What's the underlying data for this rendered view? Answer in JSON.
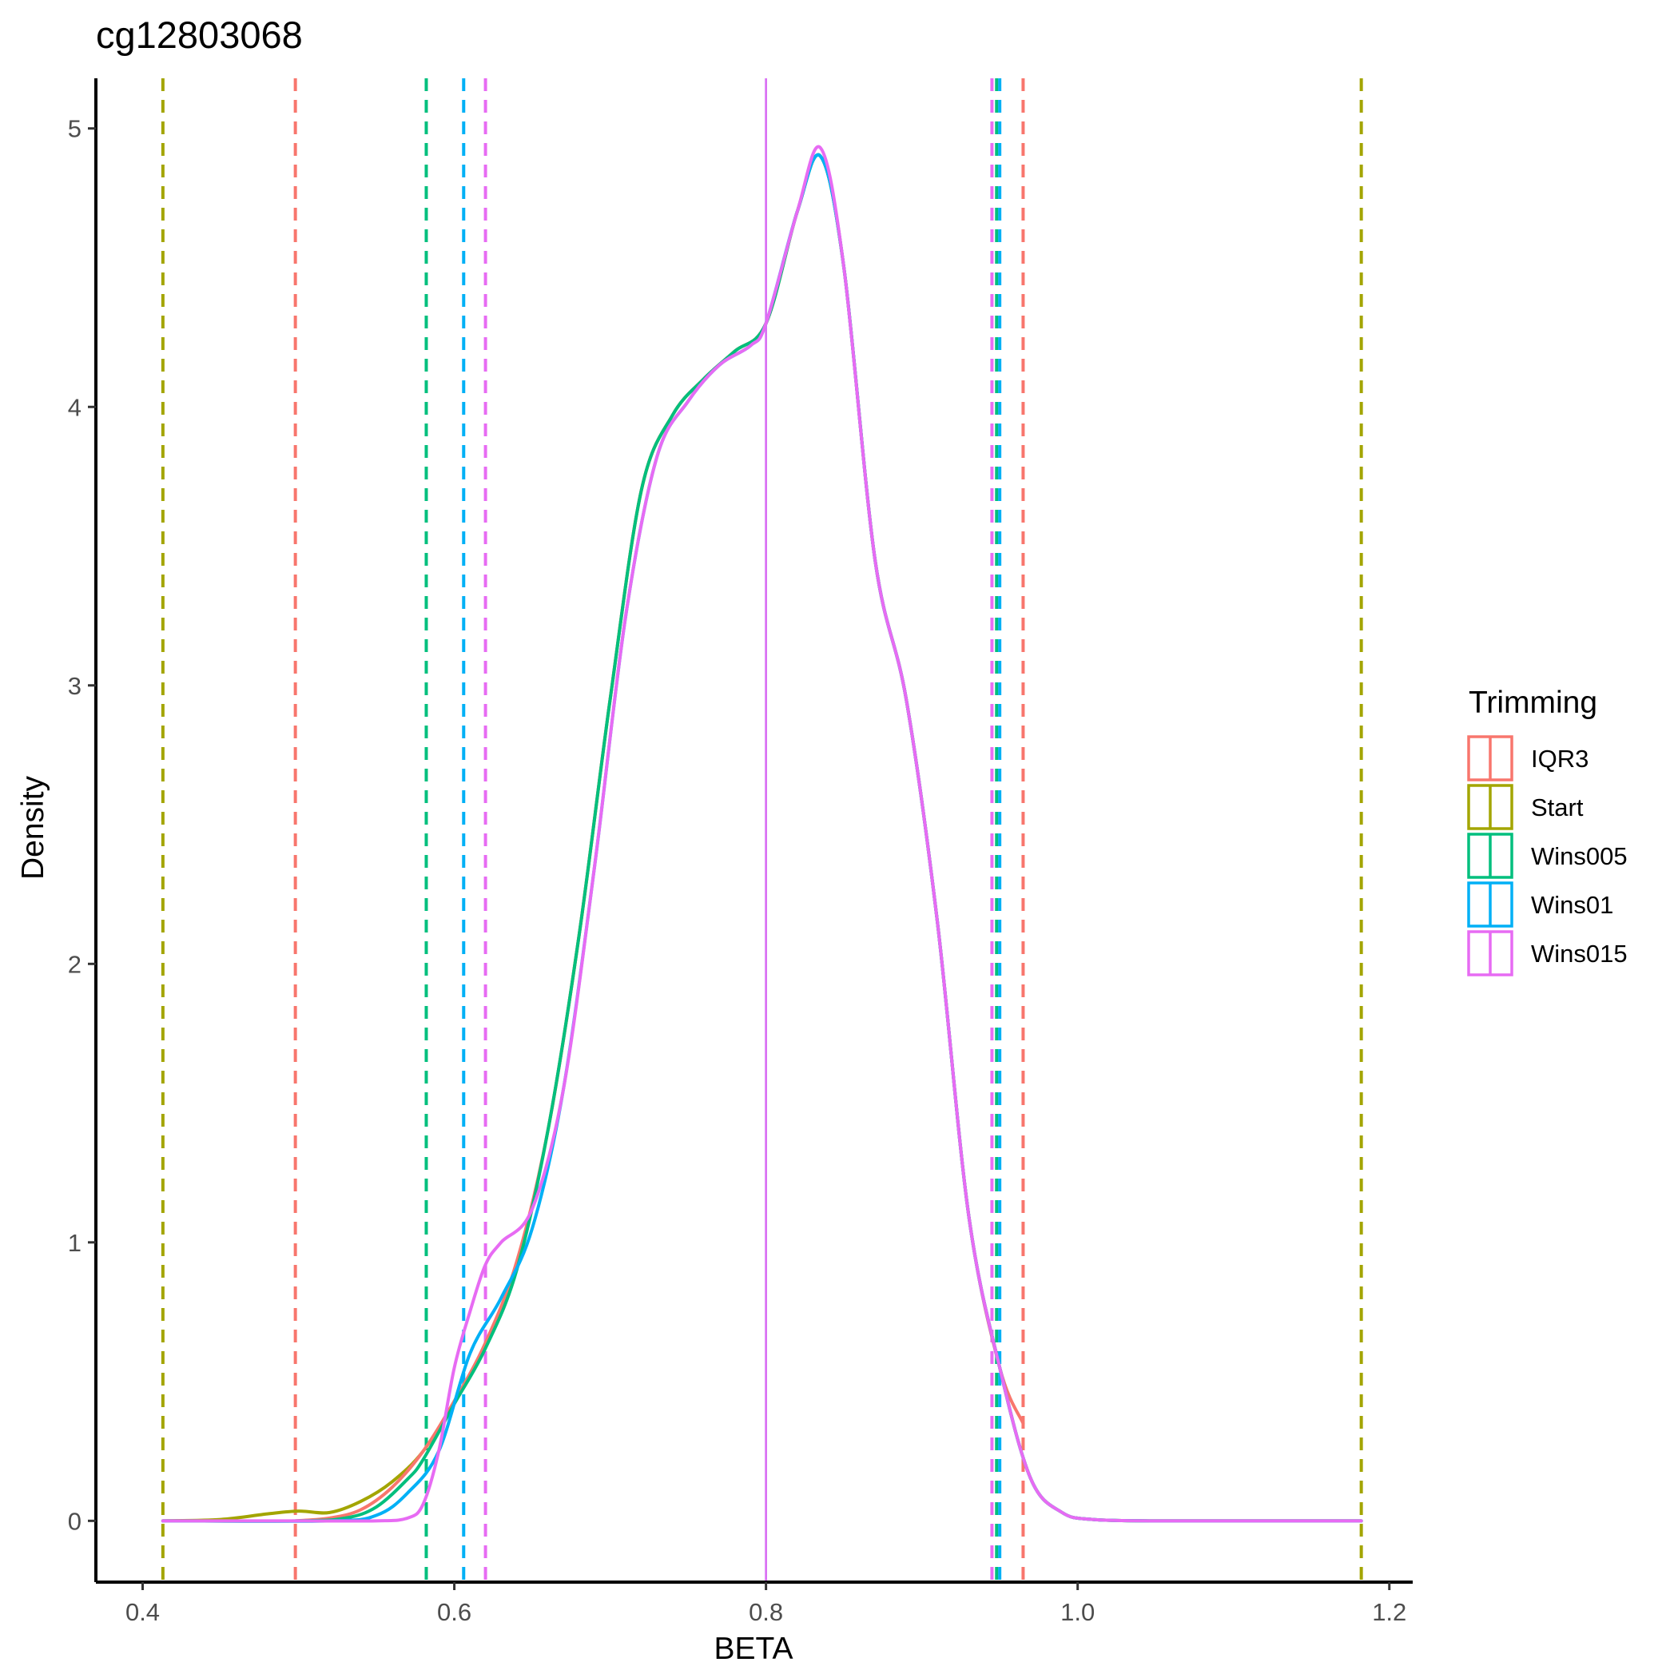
{
  "chart_data": {
    "type": "line",
    "title": "cg12803068",
    "xlabel": "BETA",
    "ylabel": "Density",
    "xlim": [
      0.37,
      1.215
    ],
    "ylim": [
      -0.22,
      5.18
    ],
    "x_ticks": [
      0.4,
      0.6,
      0.8,
      1.0,
      1.2
    ],
    "x_tick_labels": [
      "0.4",
      "0.6",
      "0.8",
      "1.0",
      "1.2"
    ],
    "y_ticks": [
      0,
      1,
      2,
      3,
      4,
      5
    ],
    "y_tick_labels": [
      "0",
      "1",
      "2",
      "3",
      "4",
      "5"
    ],
    "grid": false,
    "legend": {
      "title": "Trimming",
      "placement": "right",
      "entries": [
        "IQR3",
        "Start",
        "Wins005",
        "Wins01",
        "Wins015"
      ]
    },
    "colors": {
      "IQR3": "#F8766D",
      "Start": "#A3A500",
      "Wins005": "#00BF7D",
      "Wins01": "#00B0F6",
      "Wins015": "#E76BF3"
    },
    "series": [
      {
        "name": "Start",
        "color": "#A3A500",
        "x": [
          0.413,
          0.45,
          0.48,
          0.5,
          0.52,
          0.54,
          0.56,
          0.58,
          0.6,
          0.62,
          0.64,
          0.66,
          0.68,
          0.7,
          0.72,
          0.74,
          0.76,
          0.78,
          0.8,
          0.82,
          0.835,
          0.85,
          0.87,
          0.89,
          0.91,
          0.93,
          0.95,
          0.97,
          0.99,
          1.01,
          1.05,
          1.1,
          1.15,
          1.182
        ],
        "y": [
          0.0,
          0.005,
          0.025,
          0.035,
          0.03,
          0.07,
          0.14,
          0.25,
          0.43,
          0.63,
          0.92,
          1.4,
          2.1,
          2.95,
          3.7,
          3.97,
          4.1,
          4.2,
          4.3,
          4.7,
          4.9,
          4.5,
          3.45,
          2.95,
          2.15,
          1.1,
          0.55,
          0.15,
          0.03,
          0.005,
          0.0,
          0.0,
          0.0,
          0.0
        ]
      },
      {
        "name": "IQR3",
        "color": "#F8766D",
        "x": [
          0.498,
          0.52,
          0.54,
          0.56,
          0.58,
          0.6,
          0.62,
          0.64,
          0.66,
          0.68,
          0.7,
          0.72,
          0.74,
          0.76,
          0.78,
          0.8,
          0.82,
          0.835,
          0.85,
          0.87,
          0.89,
          0.91,
          0.93,
          0.95,
          0.965
        ],
        "y": [
          0.0,
          0.01,
          0.04,
          0.12,
          0.25,
          0.43,
          0.64,
          0.93,
          1.4,
          2.1,
          2.95,
          3.7,
          3.97,
          4.1,
          4.2,
          4.3,
          4.7,
          4.9,
          4.5,
          3.45,
          2.95,
          2.15,
          1.1,
          0.55,
          0.35
        ]
      },
      {
        "name": "Wins005",
        "color": "#00BF7D",
        "x": [
          0.413,
          0.5,
          0.53,
          0.55,
          0.57,
          0.58,
          0.6,
          0.62,
          0.64,
          0.66,
          0.68,
          0.7,
          0.72,
          0.74,
          0.76,
          0.78,
          0.8,
          0.82,
          0.835,
          0.85,
          0.87,
          0.89,
          0.91,
          0.93,
          0.95,
          0.97,
          0.99,
          1.01,
          1.05,
          1.1,
          1.15,
          1.182
        ],
        "y": [
          0.0,
          0.0,
          0.01,
          0.05,
          0.15,
          0.22,
          0.42,
          0.62,
          0.9,
          1.4,
          2.1,
          2.95,
          3.7,
          3.97,
          4.1,
          4.2,
          4.3,
          4.7,
          4.9,
          4.5,
          3.45,
          2.95,
          2.15,
          1.1,
          0.55,
          0.15,
          0.03,
          0.005,
          0.0,
          0.0,
          0.0,
          0.0
        ]
      },
      {
        "name": "Wins01",
        "color": "#00B0F6",
        "x": [
          0.413,
          0.52,
          0.55,
          0.57,
          0.59,
          0.61,
          0.63,
          0.65,
          0.67,
          0.69,
          0.71,
          0.73,
          0.75,
          0.77,
          0.79,
          0.8,
          0.82,
          0.835,
          0.85,
          0.87,
          0.89,
          0.91,
          0.93,
          0.95,
          0.97,
          0.99,
          1.01,
          1.05,
          1.1,
          1.15,
          1.182
        ],
        "y": [
          0.0,
          0.0,
          0.02,
          0.1,
          0.25,
          0.6,
          0.8,
          1.05,
          1.55,
          2.35,
          3.25,
          3.82,
          4.02,
          4.15,
          4.22,
          4.3,
          4.7,
          4.9,
          4.5,
          3.45,
          2.95,
          2.15,
          1.1,
          0.55,
          0.15,
          0.03,
          0.005,
          0.0,
          0.0,
          0.0,
          0.0
        ]
      },
      {
        "name": "Wins015",
        "color": "#E76BF3",
        "x": [
          0.413,
          0.5,
          0.55,
          0.57,
          0.58,
          0.59,
          0.6,
          0.61,
          0.62,
          0.63,
          0.65,
          0.67,
          0.69,
          0.71,
          0.73,
          0.75,
          0.77,
          0.79,
          0.8,
          0.82,
          0.835,
          0.85,
          0.87,
          0.89,
          0.91,
          0.93,
          0.95,
          0.97,
          0.99,
          1.01,
          1.05,
          1.1,
          1.15,
          1.182
        ],
        "y": [
          0.0,
          0.0,
          0.0,
          0.01,
          0.06,
          0.25,
          0.55,
          0.75,
          0.92,
          1.0,
          1.12,
          1.55,
          2.35,
          3.25,
          3.82,
          4.02,
          4.15,
          4.22,
          4.3,
          4.7,
          4.93,
          4.5,
          3.45,
          2.95,
          2.15,
          1.1,
          0.55,
          0.15,
          0.03,
          0.005,
          0.0,
          0.0,
          0.0,
          0.0
        ]
      }
    ],
    "vlines": [
      {
        "series": "Start",
        "x": 0.413,
        "style": "dashed"
      },
      {
        "series": "Start",
        "x": 1.182,
        "style": "dashed"
      },
      {
        "series": "IQR3",
        "x": 0.498,
        "style": "dashed"
      },
      {
        "series": "IQR3",
        "x": 0.965,
        "style": "dashed"
      },
      {
        "series": "Wins005",
        "x": 0.582,
        "style": "dashed"
      },
      {
        "series": "Wins005",
        "x": 0.948,
        "style": "dashed"
      },
      {
        "series": "Wins01",
        "x": 0.606,
        "style": "dashed"
      },
      {
        "series": "Wins01",
        "x": 0.95,
        "style": "dashed"
      },
      {
        "series": "Wins015",
        "x": 0.62,
        "style": "dashed"
      },
      {
        "series": "Wins015",
        "x": 0.945,
        "style": "dashed"
      },
      {
        "series": "Wins01",
        "x": 0.8,
        "style": "solid"
      },
      {
        "series": "Wins015",
        "x": 0.8,
        "style": "solid"
      }
    ]
  }
}
